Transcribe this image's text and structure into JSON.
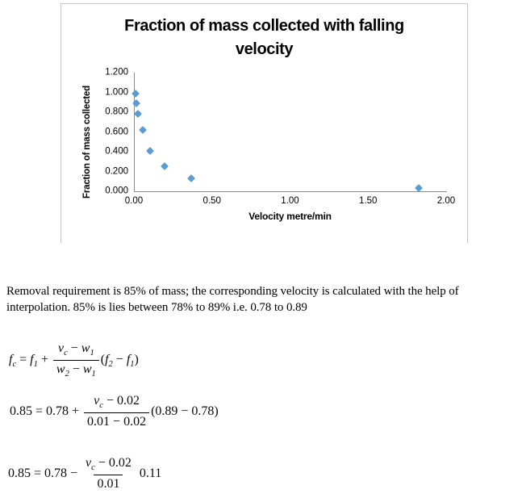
{
  "chart_data": {
    "type": "scatter",
    "title": "Fraction of mass collected with falling velocity",
    "title_lines": [
      "Fraction of mass collected with falling",
      "velocity"
    ],
    "xlabel": "Velocity metre/min",
    "ylabel": "Fraction of mass collected",
    "xlim": [
      0,
      2.0
    ],
    "ylim": [
      0,
      1.2
    ],
    "x_ticks": [
      "0.00",
      "0.50",
      "1.00",
      "1.50",
      "2.00"
    ],
    "y_ticks": [
      "0.000",
      "0.200",
      "0.400",
      "0.600",
      "0.800",
      "1.000",
      "1.200"
    ],
    "grid": false,
    "legend": "none",
    "marker": "diamond",
    "marker_color": "#5B9BD5",
    "axis_color": "#8c8c8c",
    "points": [
      {
        "x": 0.005,
        "y": 0.99
      },
      {
        "x": 0.01,
        "y": 0.89
      },
      {
        "x": 0.02,
        "y": 0.78
      },
      {
        "x": 0.05,
        "y": 0.62
      },
      {
        "x": 0.1,
        "y": 0.41
      },
      {
        "x": 0.19,
        "y": 0.25
      },
      {
        "x": 0.36,
        "y": 0.13
      },
      {
        "x": 1.82,
        "y": 0.03
      }
    ]
  },
  "paragraph": {
    "lines": [
      "Removal requirement is 85% of mass; the corresponding velocity is calculated with the help of",
      "interpolation. 85% is lies between 78% to 89% i.e. 0.78 to 0.89"
    ]
  },
  "formulas": [
    {
      "name": "general-interpolation-formula",
      "tokens": [
        {
          "k": "i",
          "t": "f"
        },
        {
          "k": "s",
          "t": "c"
        },
        {
          "k": "r",
          "t": " = "
        },
        {
          "k": "i",
          "t": "f"
        },
        {
          "k": "s",
          "t": "1"
        },
        {
          "k": "r",
          "t": " + "
        },
        {
          "k": "frac",
          "num": [
            {
              "k": "i",
              "t": "v"
            },
            {
              "k": "s",
              "t": "c"
            },
            {
              "k": "r",
              "t": " − "
            },
            {
              "k": "i",
              "t": "w"
            },
            {
              "k": "s",
              "t": "1"
            }
          ],
          "den": [
            {
              "k": "i",
              "t": "w"
            },
            {
              "k": "s",
              "t": "2"
            },
            {
              "k": "r",
              "t": " − "
            },
            {
              "k": "i",
              "t": "w"
            },
            {
              "k": "s",
              "t": "1"
            }
          ]
        },
        {
          "k": "r",
          "t": "("
        },
        {
          "k": "i",
          "t": "f"
        },
        {
          "k": "s",
          "t": "2"
        },
        {
          "k": "r",
          "t": " − "
        },
        {
          "k": "i",
          "t": "f"
        },
        {
          "k": "s",
          "t": "1"
        },
        {
          "k": "r",
          "t": ")"
        }
      ]
    },
    {
      "name": "substituted-interpolation",
      "tokens": [
        {
          "k": "r",
          "t": "0.85 = 0.78 + "
        },
        {
          "k": "frac",
          "num": [
            {
              "k": "i",
              "t": "v"
            },
            {
              "k": "s",
              "t": "c"
            },
            {
              "k": "r",
              "t": " − 0.02"
            }
          ],
          "den": [
            {
              "k": "r",
              "t": "0.01 − 0.02"
            }
          ]
        },
        {
          "k": "r",
          "t": "(0.89 − 0.78)"
        }
      ]
    },
    {
      "name": "simplified-interpolation",
      "tokens": [
        {
          "k": "r",
          "t": "0.85 = 0.78 − "
        },
        {
          "k": "frac",
          "num": [
            {
              "k": "i",
              "t": "v"
            },
            {
              "k": "s",
              "t": "c"
            },
            {
              "k": "r",
              "t": " − 0.02"
            }
          ],
          "den": [
            {
              "k": "r",
              "t": "0.01"
            }
          ]
        },
        {
          "k": "r",
          "t": " 0.11"
        }
      ]
    }
  ]
}
